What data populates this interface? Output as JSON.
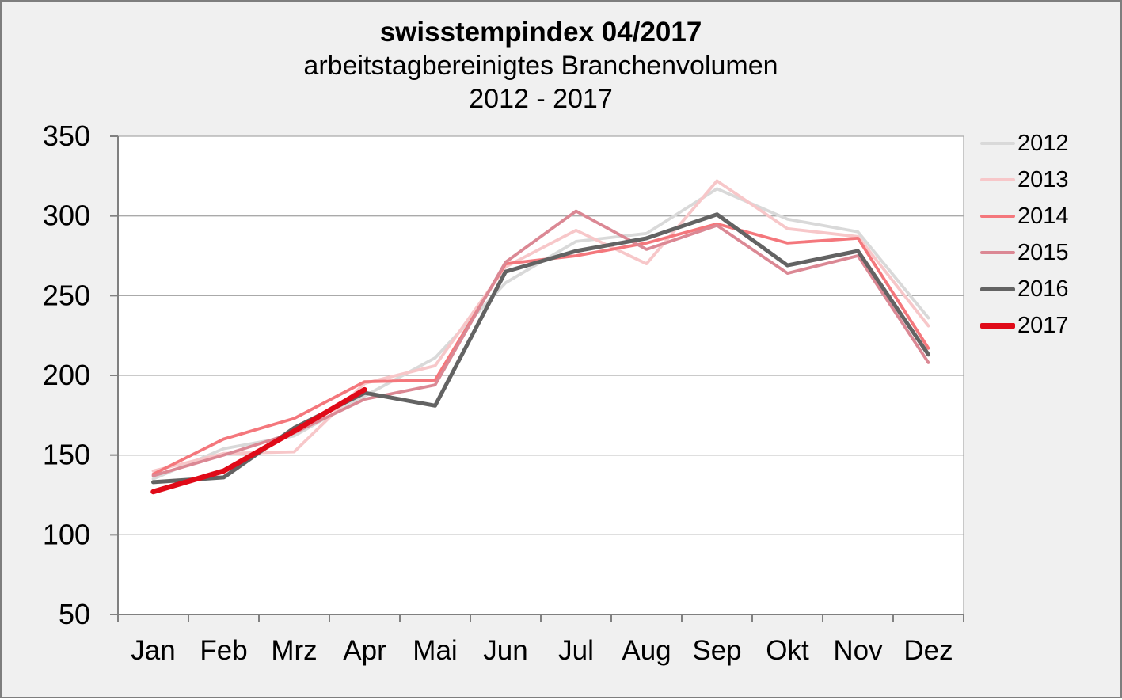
{
  "chart_data": {
    "type": "line",
    "title": "swisstempindex 04/2017",
    "subtitle": "arbeitstagbereinigtes Branchenvolumen",
    "period": "2012 - 2017",
    "categories": [
      "Jan",
      "Feb",
      "Mrz",
      "Apr",
      "Mai",
      "Jun",
      "Jul",
      "Aug",
      "Sep",
      "Okt",
      "Nov",
      "Dez"
    ],
    "ylim": [
      50,
      350
    ],
    "yticks": [
      50,
      100,
      150,
      200,
      250,
      300,
      350
    ],
    "grid": true,
    "legend_position": "right",
    "series": [
      {
        "name": "2012",
        "color": "#d9d9d9",
        "width": 3.8,
        "values": [
          135,
          154,
          162,
          187,
          211,
          258,
          284,
          289,
          317,
          298,
          290,
          236
        ]
      },
      {
        "name": "2013",
        "color": "#f7c7c9",
        "width": 3.8,
        "values": [
          140,
          151,
          152,
          195,
          206,
          268,
          291,
          270,
          322,
          292,
          287,
          231
        ]
      },
      {
        "name": "2014",
        "color": "#f4777c",
        "width": 3.8,
        "values": [
          138,
          160,
          173,
          196,
          197,
          270,
          275,
          283,
          295,
          283,
          286,
          217
        ]
      },
      {
        "name": "2015",
        "color": "#db8894",
        "width": 3.8,
        "values": [
          137,
          150,
          164,
          185,
          194,
          271,
          303,
          279,
          294,
          264,
          275,
          208
        ]
      },
      {
        "name": "2016",
        "color": "#636363",
        "width": 5,
        "values": [
          133,
          136,
          167,
          189,
          181,
          265,
          278,
          286,
          301,
          269,
          278,
          213
        ]
      },
      {
        "name": "2017",
        "color": "#e00a18",
        "width": 6.5,
        "values": [
          127,
          140,
          165,
          191,
          null,
          null,
          null,
          null,
          null,
          null,
          null,
          null
        ]
      }
    ],
    "colors": {
      "background": "#f0f0f0",
      "plot_background": "#ffffff",
      "gridline": "#aaaaaa",
      "axis_line": "#808080",
      "tick_label": "#000000",
      "frame_border": "#7e7e7e"
    }
  }
}
